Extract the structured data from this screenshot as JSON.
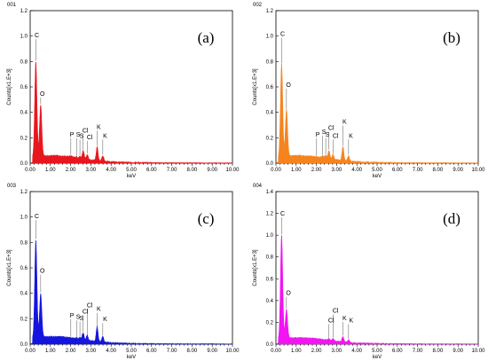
{
  "chart_data": [
    {
      "type": "area",
      "panel_label": "(a)",
      "sample_id": "001",
      "color": "#e8171e",
      "xlabel": "keV",
      "ylabel": "Counts[x1.E+3]",
      "xlim": [
        0,
        10
      ],
      "ylim": [
        0,
        1.2
      ],
      "xticks": [
        "0.00",
        "1.00",
        "2.00",
        "3.00",
        "4.00",
        "5.00",
        "6.00",
        "7.00",
        "8.00",
        "9.00",
        "10.00"
      ],
      "yticks": [
        "0.0",
        "0.2",
        "0.4",
        "0.6",
        "0.8",
        "1.0",
        "1.2"
      ],
      "peaks": [
        {
          "label": "C",
          "x": 0.28,
          "y": 0.8,
          "lx": 0.22,
          "ly": 0.99
        },
        {
          "label": "O",
          "x": 0.52,
          "y": 0.46,
          "lx": 0.48,
          "ly": 0.53
        },
        {
          "label": "P",
          "x": 2.01,
          "y": 0.06,
          "lx": 1.96,
          "ly": 0.21
        },
        {
          "label": "S",
          "x": 2.31,
          "y": 0.05,
          "lx": 2.27,
          "ly": 0.21
        },
        {
          "label": "S",
          "x": 2.46,
          "y": 0.05,
          "lx": 2.44,
          "ly": 0.2
        },
        {
          "label": "Cl",
          "x": 2.62,
          "y": 0.1,
          "lx": 2.58,
          "ly": 0.24
        },
        {
          "label": "Cl",
          "x": 2.82,
          "y": 0.07,
          "lx": 2.8,
          "ly": 0.19
        },
        {
          "label": "K",
          "x": 3.31,
          "y": 0.13,
          "lx": 3.29,
          "ly": 0.27
        },
        {
          "label": "K",
          "x": 3.59,
          "y": 0.06,
          "lx": 3.6,
          "ly": 0.2
        }
      ]
    },
    {
      "type": "area",
      "panel_label": "(b)",
      "sample_id": "002",
      "color": "#f5841f",
      "xlabel": "keV",
      "ylabel": "Counts[x1.E+3]",
      "xlim": [
        0,
        10
      ],
      "ylim": [
        0,
        1.2
      ],
      "xticks": [
        "0.00",
        "1.00",
        "2.00",
        "3.00",
        "4.00",
        "5.00",
        "6.00",
        "7.00",
        "8.00",
        "9.00",
        "10.00"
      ],
      "yticks": [
        "0.0",
        "0.2",
        "0.4",
        "0.6",
        "0.8",
        "1.0",
        "1.2"
      ],
      "peaks": [
        {
          "label": "C",
          "x": 0.28,
          "y": 0.78,
          "lx": 0.22,
          "ly": 1.0
        },
        {
          "label": "O",
          "x": 0.52,
          "y": 0.42,
          "lx": 0.5,
          "ly": 0.6
        },
        {
          "label": "P",
          "x": 2.01,
          "y": 0.05,
          "lx": 1.96,
          "ly": 0.21
        },
        {
          "label": "S",
          "x": 2.31,
          "y": 0.06,
          "lx": 2.27,
          "ly": 0.23
        },
        {
          "label": "S",
          "x": 2.46,
          "y": 0.06,
          "lx": 2.44,
          "ly": 0.21
        },
        {
          "label": "Cl",
          "x": 2.62,
          "y": 0.1,
          "lx": 2.58,
          "ly": 0.26
        },
        {
          "label": "Cl",
          "x": 2.82,
          "y": 0.07,
          "lx": 2.8,
          "ly": 0.2
        },
        {
          "label": "K",
          "x": 3.31,
          "y": 0.13,
          "lx": 3.29,
          "ly": 0.31
        },
        {
          "label": "K",
          "x": 3.59,
          "y": 0.06,
          "lx": 3.6,
          "ly": 0.2
        }
      ]
    },
    {
      "type": "area",
      "panel_label": "(c)",
      "sample_id": "003",
      "color": "#1515e0",
      "xlabel": "keV",
      "ylabel": "Counts[x1.E+3]",
      "xlim": [
        0,
        10
      ],
      "ylim": [
        0,
        1.2
      ],
      "xticks": [
        "0.00",
        "1.00",
        "2.00",
        "3.00",
        "4.00",
        "5.00",
        "6.00",
        "7.00",
        "8.00",
        "9.00",
        "10.00"
      ],
      "yticks": [
        "0.0",
        "0.2",
        "0.4",
        "0.6",
        "0.8",
        "1.0",
        "1.2"
      ],
      "peaks": [
        {
          "label": "C",
          "x": 0.28,
          "y": 0.82,
          "lx": 0.22,
          "ly": 0.99
        },
        {
          "label": "O",
          "x": 0.52,
          "y": 0.4,
          "lx": 0.48,
          "ly": 0.56
        },
        {
          "label": "P",
          "x": 2.01,
          "y": 0.05,
          "lx": 1.96,
          "ly": 0.21
        },
        {
          "label": "S",
          "x": 2.31,
          "y": 0.05,
          "lx": 2.27,
          "ly": 0.2
        },
        {
          "label": "S",
          "x": 2.46,
          "y": 0.05,
          "lx": 2.44,
          "ly": 0.19
        },
        {
          "label": "Cl",
          "x": 2.62,
          "y": 0.09,
          "lx": 2.58,
          "ly": 0.24
        },
        {
          "label": "Cl",
          "x": 2.82,
          "y": 0.07,
          "lx": 2.8,
          "ly": 0.29
        },
        {
          "label": "K",
          "x": 3.31,
          "y": 0.14,
          "lx": 3.29,
          "ly": 0.26
        },
        {
          "label": "K",
          "x": 3.59,
          "y": 0.06,
          "lx": 3.6,
          "ly": 0.18
        }
      ]
    },
    {
      "type": "area",
      "panel_label": "(d)",
      "sample_id": "004",
      "color": "#f214f2",
      "xlabel": "keV",
      "ylabel": "Counts[x1.E+3]",
      "xlim": [
        0,
        10
      ],
      "ylim": [
        0,
        1.4
      ],
      "xticks": [
        "0.00",
        "1.00",
        "2.00",
        "3.00",
        "4.00",
        "5.00",
        "6.00",
        "7.00",
        "8.00",
        "9.00",
        "10.00"
      ],
      "yticks": [
        "0.0",
        "0.2",
        "0.4",
        "0.6",
        "0.8",
        "1.0",
        "1.2",
        "1.4"
      ],
      "peaks": [
        {
          "label": "C",
          "x": 0.28,
          "y": 1.0,
          "lx": 0.22,
          "ly": 1.18
        },
        {
          "label": "O",
          "x": 0.52,
          "y": 0.32,
          "lx": 0.5,
          "ly": 0.45
        },
        {
          "label": "Cl",
          "x": 2.62,
          "y": 0.05,
          "lx": 2.58,
          "ly": 0.2
        },
        {
          "label": "Cl",
          "x": 2.82,
          "y": 0.05,
          "lx": 2.8,
          "ly": 0.29
        },
        {
          "label": "K",
          "x": 3.31,
          "y": 0.07,
          "lx": 3.29,
          "ly": 0.22
        },
        {
          "label": "K",
          "x": 3.59,
          "y": 0.04,
          "lx": 3.62,
          "ly": 0.2
        }
      ]
    }
  ]
}
